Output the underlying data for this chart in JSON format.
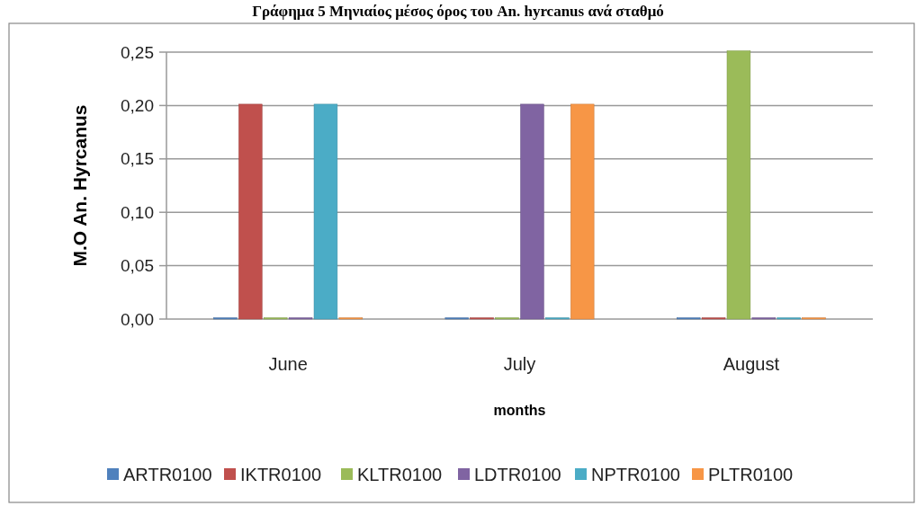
{
  "chart_data": {
    "type": "bar",
    "title": "Γράφημα 5 Μηνιαίος μέσος όρος του An. hyrcanus ανά σταθμό",
    "xlabel": "months",
    "ylabel": "M.O An. Hyrcanus",
    "categories": [
      "June",
      "July",
      "August"
    ],
    "series": [
      {
        "name": "ARTR0100",
        "color": "#4f81bd",
        "values": [
          0,
          0,
          0
        ]
      },
      {
        "name": "IKTR0100",
        "color": "#c0504d",
        "values": [
          0.2,
          0,
          0
        ]
      },
      {
        "name": "KLTR0100",
        "color": "#9bbb59",
        "values": [
          0,
          0,
          0.25
        ]
      },
      {
        "name": "LDTR0100",
        "color": "#8064a2",
        "values": [
          0,
          0.2,
          0
        ]
      },
      {
        "name": "NPTR0100",
        "color": "#4bacc6",
        "values": [
          0.2,
          0,
          0
        ]
      },
      {
        "name": "PLTR0100",
        "color": "#f79646",
        "values": [
          0,
          0.2,
          0
        ]
      }
    ],
    "ylim": [
      0,
      0.25
    ],
    "yticks": [
      {
        "value": 0,
        "label": "0,00"
      },
      {
        "value": 0.05,
        "label": "0,05"
      },
      {
        "value": 0.1,
        "label": "0,10"
      },
      {
        "value": 0.15,
        "label": "0,15"
      },
      {
        "value": 0.2,
        "label": "0,20"
      },
      {
        "value": 0.25,
        "label": "0,25"
      }
    ],
    "grid": "y",
    "legend": "bottom"
  }
}
